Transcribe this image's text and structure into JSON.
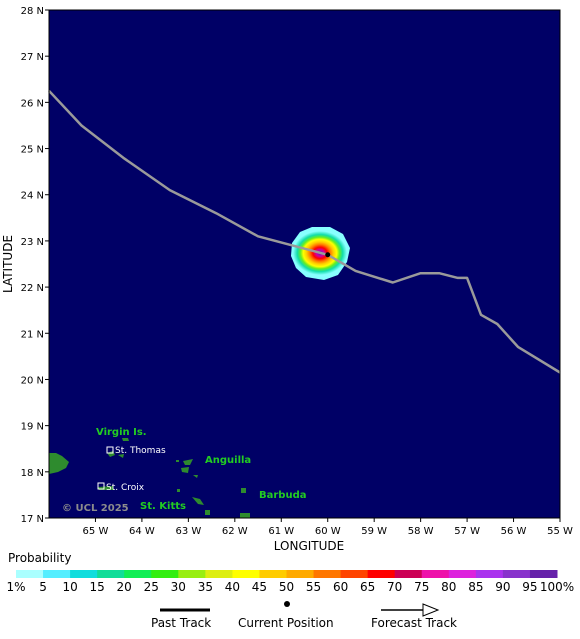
{
  "map": {
    "background_color": "#000066",
    "land_color": "#2e8b2e",
    "track_color": "#9a9a9a",
    "axes": {
      "xlabel": "LONGITUDE",
      "ylabel": "LATITUDE",
      "x_ticks": [
        "65 W",
        "64 W",
        "63 W",
        "62 W",
        "61 W",
        "60 W",
        "59 W",
        "58 W",
        "57 W",
        "56 W",
        "55 W"
      ],
      "y_ticks": [
        "28 N",
        "27 N",
        "26 N",
        "25 N",
        "24 N",
        "23 N",
        "22 N",
        "21 N",
        "20 N",
        "19 N",
        "18 N",
        "17 N"
      ],
      "lon_range": [
        -66,
        -55
      ],
      "lat_range": [
        17,
        28
      ]
    },
    "current_position": {
      "lon": -60.0,
      "lat": 22.7
    },
    "track": [
      [
        -66.0,
        26.25
      ],
      [
        -65.3,
        25.5
      ],
      [
        -64.4,
        24.8
      ],
      [
        -63.4,
        24.1
      ],
      [
        -62.4,
        23.6
      ],
      [
        -61.5,
        23.1
      ],
      [
        -60.0,
        22.7
      ],
      [
        -59.4,
        22.35
      ],
      [
        -58.6,
        22.1
      ],
      [
        -58.0,
        22.3
      ],
      [
        -57.6,
        22.3
      ],
      [
        -57.2,
        22.2
      ],
      [
        -57.0,
        22.2
      ],
      [
        -56.7,
        21.4
      ],
      [
        -56.35,
        21.2
      ],
      [
        -55.9,
        20.7
      ],
      [
        -55.0,
        20.15
      ]
    ],
    "labels": {
      "virgin_islands": "Virgin Is.",
      "st_thomas": "St. Thomas",
      "st_croix": "St. Croix",
      "anguilla": "Anguilla",
      "st_kitts": "St. Kitts",
      "barbuda": "Barbuda"
    },
    "copyright": "© UCL 2025"
  },
  "legend": {
    "title": "Probability",
    "labels": [
      "1%",
      "5",
      "10",
      "15",
      "20",
      "25",
      "30",
      "35",
      "40",
      "45",
      "50",
      "55",
      "60",
      "65",
      "70",
      "75",
      "80",
      "85",
      "90",
      "95",
      "100%"
    ],
    "colors": [
      "#aaffff",
      "#55eeff",
      "#11dddd",
      "#11dd99",
      "#11ee55",
      "#33ee11",
      "#99ee11",
      "#ddee11",
      "#ffff00",
      "#ffcc00",
      "#ffaa00",
      "#ff7700",
      "#ff4400",
      "#ff0000",
      "#cc0055",
      "#ee11aa",
      "#dd22dd",
      "#aa33ee",
      "#8833cc",
      "#6622aa"
    ]
  },
  "key": {
    "past_track": "Past Track",
    "current_position": "Current Position",
    "forecast_track": "Forecast Track"
  }
}
